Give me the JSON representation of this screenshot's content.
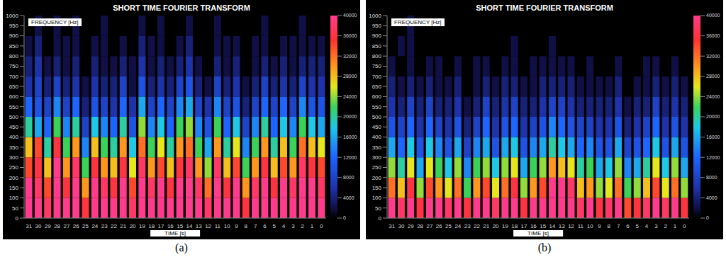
{
  "chart_data": [
    {
      "type": "heatmap",
      "title": "SHORT TIME FOURIER TRANSFORM",
      "caption": "(a)",
      "y_label": "FREQUENCY [Hz]",
      "x_label": "TIME [s]",
      "categories": [
        "31",
        "30",
        "29",
        "28",
        "27",
        "26",
        "25",
        "24",
        "23",
        "22",
        "21",
        "20",
        "19",
        "18",
        "17",
        "16",
        "15",
        "14",
        "13",
        "12",
        "11",
        "10",
        "9",
        "8",
        "7",
        "6",
        "5",
        "4",
        "3",
        "2",
        "1",
        "0"
      ],
      "bins": [
        0,
        100,
        200,
        300,
        400,
        500,
        600,
        700,
        800,
        900,
        1000
      ],
      "ylim": [
        0,
        1000
      ],
      "yticks": [
        0,
        50,
        100,
        150,
        200,
        250,
        300,
        350,
        400,
        450,
        500,
        550,
        600,
        650,
        700,
        750,
        800,
        850,
        900,
        950,
        1000
      ],
      "cells": [
        [
          40000,
          40000,
          38000,
          40000,
          40000,
          40000,
          36000,
          40000,
          40000,
          40000,
          40000,
          38000,
          40000,
          40000,
          40000,
          40000,
          40000,
          40000,
          40000,
          38000,
          40000,
          40000,
          40000,
          36000,
          40000,
          40000,
          40000,
          40000,
          40000,
          40000,
          40000,
          40000
        ],
        [
          40000,
          38000,
          34000,
          40000,
          36000,
          40000,
          30000,
          40000,
          38000,
          36000,
          40000,
          34000,
          40000,
          38000,
          40000,
          36000,
          40000,
          40000,
          38000,
          32000,
          40000,
          36000,
          40000,
          30000,
          38000,
          40000,
          36000,
          40000,
          38000,
          40000,
          40000,
          38000
        ],
        [
          34000,
          36000,
          28000,
          40000,
          30000,
          38000,
          22000,
          36000,
          30000,
          28000,
          36000,
          26000,
          38000,
          30000,
          34000,
          28000,
          36000,
          38000,
          30000,
          24000,
          38000,
          28000,
          34000,
          22000,
          30000,
          36000,
          28000,
          34000,
          30000,
          38000,
          36000,
          34000
        ],
        [
          28000,
          34000,
          20000,
          36000,
          22000,
          30000,
          14000,
          28000,
          22000,
          20000,
          30000,
          18000,
          32000,
          22000,
          26000,
          20000,
          30000,
          32000,
          22000,
          16000,
          30000,
          20000,
          26000,
          14000,
          22000,
          30000,
          20000,
          28000,
          22000,
          32000,
          28000,
          26000
        ],
        [
          20000,
          16000,
          12000,
          22000,
          14000,
          20000,
          8000,
          18000,
          14000,
          12000,
          20000,
          10000,
          24000,
          14000,
          18000,
          12000,
          22000,
          24000,
          14000,
          10000,
          22000,
          12000,
          18000,
          8000,
          14000,
          20000,
          12000,
          18000,
          14000,
          22000,
          18000,
          16000
        ],
        [
          12000,
          10000,
          8000,
          14000,
          8000,
          12000,
          4000,
          10000,
          8000,
          6000,
          12000,
          6000,
          16000,
          8000,
          12000,
          8000,
          14000,
          16000,
          8000,
          6000,
          14000,
          8000,
          10000,
          4000,
          8000,
          12000,
          8000,
          12000,
          8000,
          14000,
          10000,
          10000
        ],
        [
          6000,
          8000,
          4000,
          8000,
          4000,
          6000,
          2000,
          6000,
          4000,
          4000,
          8000,
          2000,
          10000,
          4000,
          6000,
          4000,
          8000,
          10000,
          4000,
          2000,
          8000,
          4000,
          6000,
          2000,
          4000,
          8000,
          4000,
          6000,
          4000,
          8000,
          6000,
          6000
        ],
        [
          4000,
          6000,
          2000,
          4000,
          2000,
          4000,
          0,
          4000,
          2000,
          2000,
          4000,
          2000,
          6000,
          2000,
          4000,
          2000,
          4000,
          6000,
          2000,
          0,
          4000,
          2000,
          4000,
          0,
          2000,
          4000,
          2000,
          4000,
          2000,
          4000,
          4000,
          4000
        ],
        [
          2000,
          4000,
          0,
          2000,
          2000,
          2000,
          0,
          2000,
          2000,
          0,
          2000,
          0,
          4000,
          2000,
          2000,
          0,
          2000,
          4000,
          0,
          0,
          2000,
          2000,
          2000,
          0,
          2000,
          2000,
          0,
          2000,
          2000,
          2000,
          2000,
          2000
        ],
        [
          0,
          2000,
          0,
          2000,
          0,
          2000,
          0,
          0,
          2000,
          0,
          0,
          0,
          2000,
          0,
          2000,
          0,
          0,
          2000,
          0,
          0,
          2000,
          0,
          0,
          0,
          0,
          2000,
          0,
          0,
          0,
          2000,
          0,
          0
        ]
      ],
      "colorbar_range": [
        0,
        40000
      ],
      "colorbar_ticks": [
        0,
        4000,
        8000,
        12000,
        16000,
        20000,
        24000,
        28000,
        32000,
        36000,
        40000
      ]
    },
    {
      "type": "heatmap",
      "title": "SHORT TIME FOURIER TRANSFORM",
      "caption": "(b)",
      "y_label": "FREQUENCY [Hz]",
      "x_label": "TIME [s]",
      "categories": [
        "31",
        "30",
        "29",
        "28",
        "27",
        "26",
        "25",
        "24",
        "23",
        "22",
        "21",
        "20",
        "19",
        "18",
        "17",
        "16",
        "15",
        "14",
        "13",
        "12",
        "11",
        "10",
        "9",
        "8",
        "7",
        "6",
        "5",
        "4",
        "3",
        "2",
        "1",
        "0"
      ],
      "bins": [
        0,
        100,
        200,
        300,
        400,
        500,
        600,
        700,
        800,
        900,
        1000
      ],
      "ylim": [
        0,
        1000
      ],
      "yticks": [
        0,
        50,
        100,
        150,
        200,
        250,
        300,
        350,
        400,
        450,
        500,
        550,
        600,
        650,
        700,
        750,
        800,
        850,
        900,
        950,
        1000
      ],
      "cells": [
        [
          40000,
          38000,
          40000,
          36000,
          40000,
          40000,
          38000,
          40000,
          36000,
          40000,
          40000,
          38000,
          40000,
          40000,
          36000,
          40000,
          40000,
          40000,
          40000,
          40000,
          38000,
          40000,
          36000,
          38000,
          40000,
          34000,
          36000,
          38000,
          40000,
          38000,
          40000,
          36000
        ],
        [
          32000,
          28000,
          36000,
          24000,
          34000,
          30000,
          26000,
          32000,
          22000,
          30000,
          34000,
          26000,
          32000,
          36000,
          24000,
          30000,
          34000,
          40000,
          40000,
          38000,
          28000,
          30000,
          24000,
          26000,
          32000,
          22000,
          24000,
          28000,
          34000,
          26000,
          32000,
          24000
        ],
        [
          24000,
          20000,
          26000,
          16000,
          26000,
          22000,
          18000,
          24000,
          14000,
          22000,
          24000,
          18000,
          24000,
          26000,
          16000,
          22000,
          24000,
          30000,
          28000,
          26000,
          20000,
          22000,
          16000,
          18000,
          24000,
          14000,
          16000,
          20000,
          26000,
          18000,
          24000,
          16000
        ],
        [
          16000,
          12000,
          18000,
          10000,
          18000,
          14000,
          10000,
          16000,
          8000,
          14000,
          16000,
          10000,
          16000,
          18000,
          10000,
          14000,
          16000,
          20000,
          18000,
          16000,
          12000,
          14000,
          10000,
          10000,
          16000,
          8000,
          10000,
          12000,
          18000,
          10000,
          16000,
          10000
        ],
        [
          10000,
          8000,
          12000,
          6000,
          12000,
          8000,
          6000,
          10000,
          4000,
          8000,
          12000,
          6000,
          10000,
          12000,
          6000,
          8000,
          10000,
          14000,
          12000,
          10000,
          8000,
          8000,
          6000,
          6000,
          10000,
          4000,
          6000,
          8000,
          12000,
          6000,
          10000,
          6000
        ],
        [
          6000,
          4000,
          8000,
          4000,
          8000,
          4000,
          4000,
          6000,
          2000,
          4000,
          8000,
          4000,
          6000,
          8000,
          4000,
          4000,
          6000,
          8000,
          8000,
          6000,
          4000,
          4000,
          4000,
          4000,
          6000,
          2000,
          4000,
          4000,
          8000,
          4000,
          6000,
          4000
        ],
        [
          4000,
          2000,
          4000,
          2000,
          4000,
          2000,
          2000,
          4000,
          0,
          2000,
          4000,
          2000,
          4000,
          4000,
          2000,
          2000,
          4000,
          4000,
          4000,
          4000,
          2000,
          2000,
          2000,
          2000,
          4000,
          0,
          2000,
          2000,
          4000,
          2000,
          4000,
          2000
        ],
        [
          2000,
          0,
          2000,
          0,
          2000,
          2000,
          0,
          2000,
          0,
          2000,
          2000,
          0,
          2000,
          2000,
          0,
          2000,
          2000,
          2000,
          2000,
          2000,
          0,
          2000,
          0,
          0,
          2000,
          0,
          0,
          2000,
          2000,
          0,
          2000,
          0
        ],
        [
          0,
          2000,
          2000,
          0,
          0,
          0,
          0,
          0,
          0,
          0,
          0,
          0,
          0,
          2000,
          0,
          0,
          0,
          2000,
          0,
          0,
          0,
          0,
          0,
          0,
          0,
          0,
          0,
          0,
          0,
          0,
          0,
          0
        ],
        [
          0,
          0,
          2000,
          0,
          0,
          0,
          0,
          0,
          0,
          0,
          0,
          0,
          0,
          0,
          0,
          0,
          0,
          0,
          0,
          0,
          0,
          0,
          0,
          0,
          0,
          0,
          0,
          0,
          0,
          0,
          0,
          0
        ]
      ],
      "colorbar_range": [
        0,
        40000
      ],
      "colorbar_ticks": [
        0,
        4000,
        8000,
        12000,
        16000,
        20000,
        24000,
        28000,
        32000,
        36000,
        40000
      ]
    }
  ]
}
